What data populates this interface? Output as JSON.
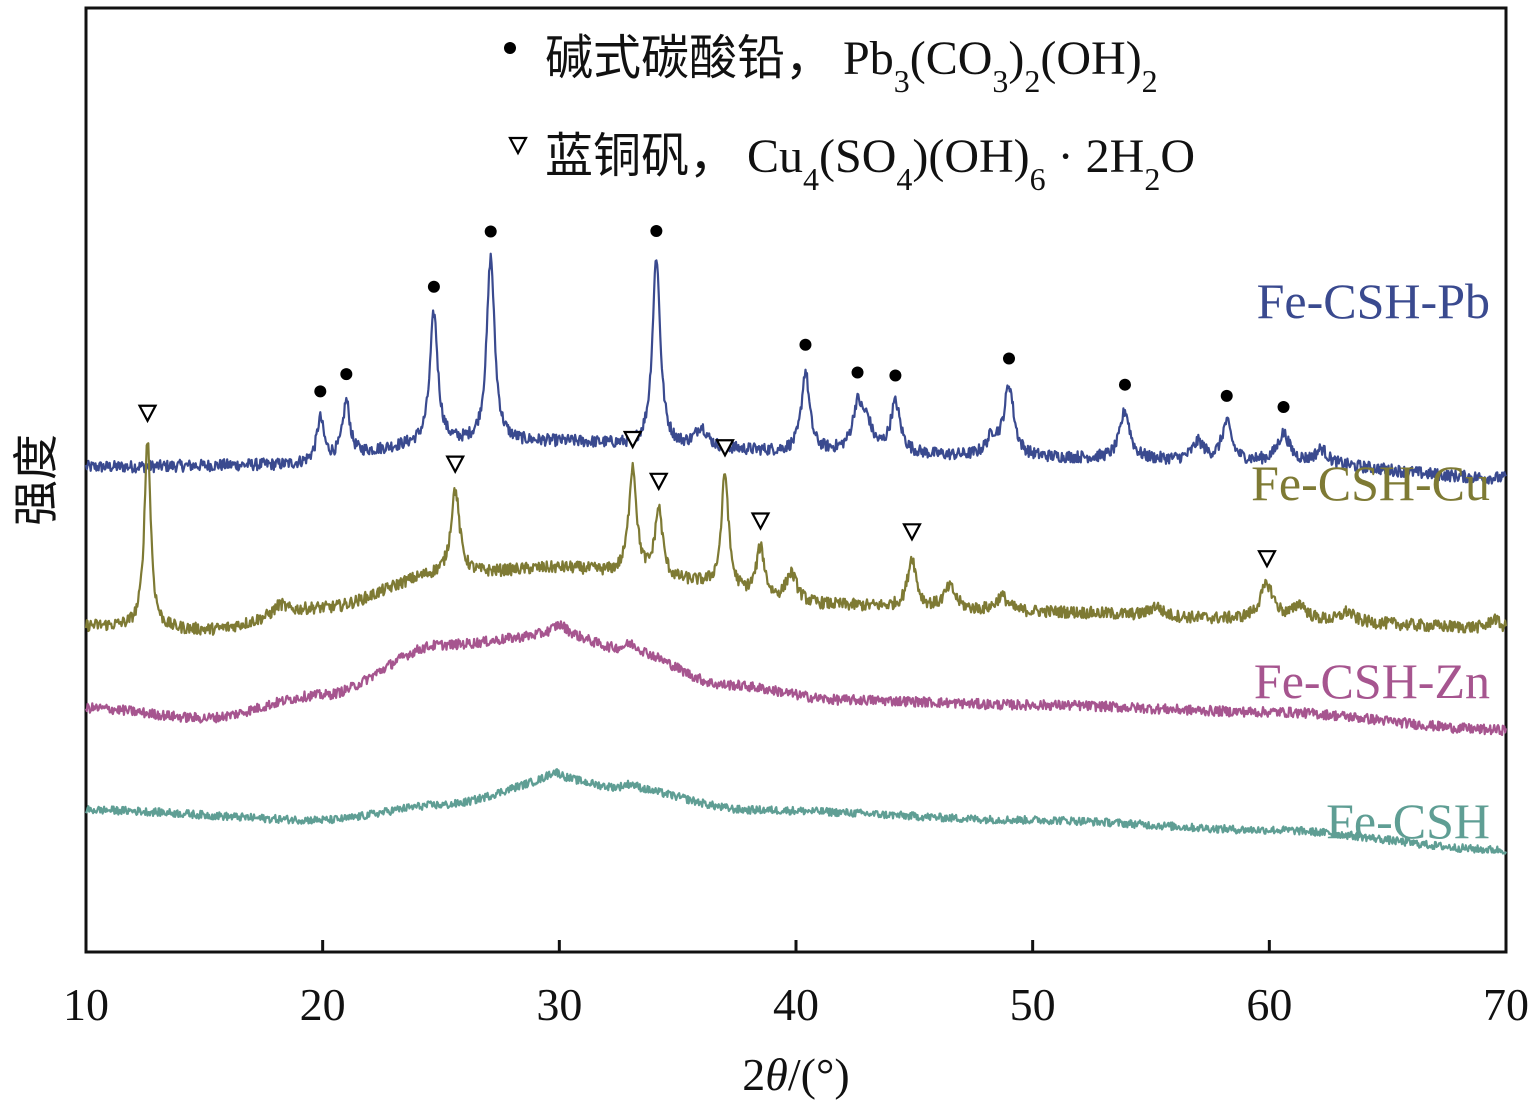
{
  "chart_data": {
    "type": "line",
    "xlabel": "2θ/(°)",
    "ylabel": "强度",
    "xlim": [
      10,
      70
    ],
    "xticks": [
      10,
      20,
      30,
      40,
      50,
      60,
      70
    ],
    "y_axis": "arbitrary intensity units, traces vertically offset",
    "legend": {
      "position": "top",
      "entries": [
        {
          "marker": "filled-circle",
          "name": "碱式碳酸铅",
          "sep": "，",
          "formula_html": "Pb<tspan baseline-shift=\"sub\" font-size=\"32\">3</tspan>(CO<tspan baseline-shift=\"sub\" font-size=\"32\">3</tspan>)<tspan baseline-shift=\"sub\" font-size=\"32\">2</tspan>(OH)<tspan baseline-shift=\"sub\" font-size=\"32\">2</tspan>",
          "formula_text": "Pb3(CO3)2(OH)2"
        },
        {
          "marker": "open-triangle",
          "name": "蓝铜矾",
          "sep": "，",
          "formula_html": "Cu<tspan baseline-shift=\"sub\" font-size=\"32\">4</tspan>(SO<tspan baseline-shift=\"sub\" font-size=\"32\">4</tspan>)(OH)<tspan baseline-shift=\"sub\" font-size=\"32\">6</tspan> · 2H<tspan baseline-shift=\"sub\" font-size=\"32\">2</tspan>O",
          "formula_text": "Cu4(SO4)(OH)6 · 2H2O"
        }
      ]
    },
    "series": [
      {
        "name": "Fe-CSH-Pb",
        "color": "#3a4a8f",
        "offset": 450,
        "noise": 6,
        "baseline": [
          [
            10,
            3
          ],
          [
            18,
            5
          ],
          [
            25,
            26
          ],
          [
            30,
            28
          ],
          [
            35,
            22
          ],
          [
            40,
            18
          ],
          [
            50,
            12
          ],
          [
            60,
            8
          ],
          [
            70,
            -8
          ]
        ],
        "peaks": [
          [
            19.9,
            42,
            0.18
          ],
          [
            21.0,
            55,
            0.18
          ],
          [
            24.7,
            130,
            0.2
          ],
          [
            27.1,
            185,
            0.2
          ],
          [
            34.1,
            190,
            0.2
          ],
          [
            36.0,
            20,
            0.3
          ],
          [
            40.4,
            80,
            0.2
          ],
          [
            42.6,
            45,
            0.25
          ],
          [
            43.0,
            25,
            0.25
          ],
          [
            44.2,
            50,
            0.25
          ],
          [
            48.3,
            18,
            0.3
          ],
          [
            49.0,
            70,
            0.25
          ],
          [
            53.9,
            48,
            0.25
          ],
          [
            57.0,
            18,
            0.3
          ],
          [
            58.2,
            38,
            0.25
          ],
          [
            60.6,
            28,
            0.3
          ],
          [
            62.2,
            14,
            0.3
          ]
        ],
        "markers": [
          19.9,
          21.0,
          24.7,
          27.1,
          34.1,
          40.4,
          42.6,
          44.2,
          49.0,
          53.9,
          58.2,
          60.6
        ],
        "marker_type": "filled-circle"
      },
      {
        "name": "Fe-CSH-Cu",
        "color": "#7e7a34",
        "offset": 290,
        "noise": 6,
        "baseline": [
          [
            10,
            4
          ],
          [
            15,
            0
          ],
          [
            20,
            22
          ],
          [
            25,
            55
          ],
          [
            30,
            62
          ],
          [
            35,
            48
          ],
          [
            40,
            25
          ],
          [
            50,
            18
          ],
          [
            60,
            10
          ],
          [
            70,
            2
          ]
        ],
        "peaks": [
          [
            12.6,
            190,
            0.16
          ],
          [
            18.2,
            10,
            0.3
          ],
          [
            25.6,
            85,
            0.22
          ],
          [
            33.1,
            110,
            0.2
          ],
          [
            34.2,
            70,
            0.2
          ],
          [
            37.0,
            115,
            0.18
          ],
          [
            38.5,
            50,
            0.22
          ],
          [
            39.8,
            30,
            0.3
          ],
          [
            44.9,
            50,
            0.22
          ],
          [
            46.5,
            22,
            0.3
          ],
          [
            48.7,
            15,
            0.3
          ],
          [
            55.2,
            10,
            0.3
          ],
          [
            59.9,
            35,
            0.35
          ],
          [
            61.3,
            15,
            0.3
          ],
          [
            63.3,
            10,
            0.3
          ],
          [
            69.5,
            10,
            0.2
          ]
        ],
        "markers": [
          12.6,
          25.6,
          33.1,
          34.2,
          37.0,
          38.5,
          44.9,
          59.9
        ],
        "marker_type": "open-triangle"
      },
      {
        "name": "Fe-CSH-Zn",
        "color": "#a6558f",
        "offset": 190,
        "noise": 5,
        "baseline": [
          [
            10,
            22
          ],
          [
            15,
            12
          ],
          [
            20,
            35
          ],
          [
            25,
            85
          ],
          [
            30,
            95
          ],
          [
            33,
            78
          ],
          [
            37,
            45
          ],
          [
            42,
            30
          ],
          [
            50,
            25
          ],
          [
            60,
            18
          ],
          [
            70,
            0
          ]
        ],
        "peaks": [
          [
            30.0,
            10,
            0.4
          ],
          [
            33.0,
            8,
            0.4
          ]
        ],
        "markers": [],
        "marker_type": "none"
      },
      {
        "name": "Fe-CSH",
        "color": "#5f9e94",
        "offset": 70,
        "noise": 4,
        "baseline": [
          [
            10,
            40
          ],
          [
            20,
            30
          ],
          [
            25,
            45
          ],
          [
            30,
            70
          ],
          [
            33,
            60
          ],
          [
            38,
            40
          ],
          [
            50,
            30
          ],
          [
            60,
            20
          ],
          [
            70,
            0
          ]
        ],
        "peaks": [
          [
            29.8,
            8,
            0.4
          ],
          [
            33.0,
            6,
            0.4
          ]
        ],
        "markers": [],
        "marker_type": "none"
      }
    ]
  }
}
